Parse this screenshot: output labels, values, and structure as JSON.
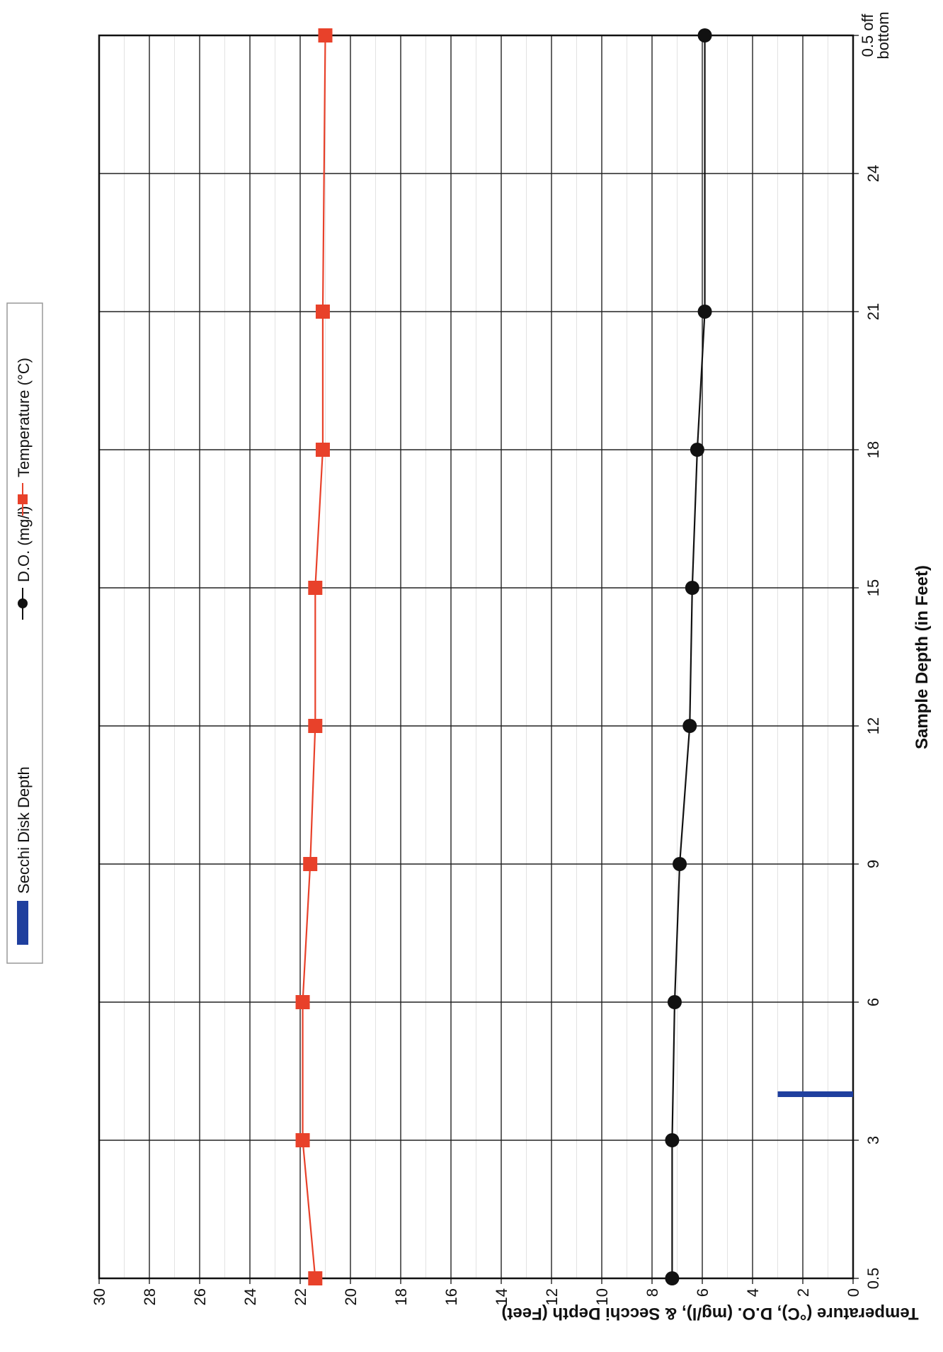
{
  "chart_data": {
    "type": "line",
    "orientation": "rotated-90",
    "xlabel": "Sample Depth (in Feet)",
    "ylabel": "Temperature (°C), D.O. (mg/l), & Secchi Depth (Feet)",
    "categories": [
      "0.5",
      "3",
      "6",
      "9",
      "12",
      "15",
      "18",
      "21",
      "24",
      "0.5 off bottom"
    ],
    "y_ticks": [
      "0",
      "2",
      "4",
      "6",
      "8",
      "10",
      "12",
      "14",
      "16",
      "18",
      "20",
      "22",
      "24",
      "26",
      "28",
      "30"
    ],
    "ylim": [
      0,
      30
    ],
    "grid": true,
    "legend": "top",
    "series": [
      {
        "name": "Secchi Disk Depth",
        "kind": "bar",
        "color": "#1f3f9e",
        "x_depth_ft": 4.0,
        "value": 3
      },
      {
        "name": "D.O. (mg/l)",
        "kind": "line",
        "marker": "circle",
        "color": "#111111",
        "values": [
          7.2,
          7.2,
          7.1,
          6.9,
          6.5,
          6.4,
          6.2,
          5.9,
          null,
          5.9
        ]
      },
      {
        "name": "Temperature (°C)",
        "kind": "line",
        "marker": "square",
        "color": "#e8412a",
        "values": [
          21.4,
          21.9,
          21.9,
          21.6,
          21.4,
          21.4,
          21.1,
          21.1,
          null,
          21.0
        ]
      }
    ]
  }
}
